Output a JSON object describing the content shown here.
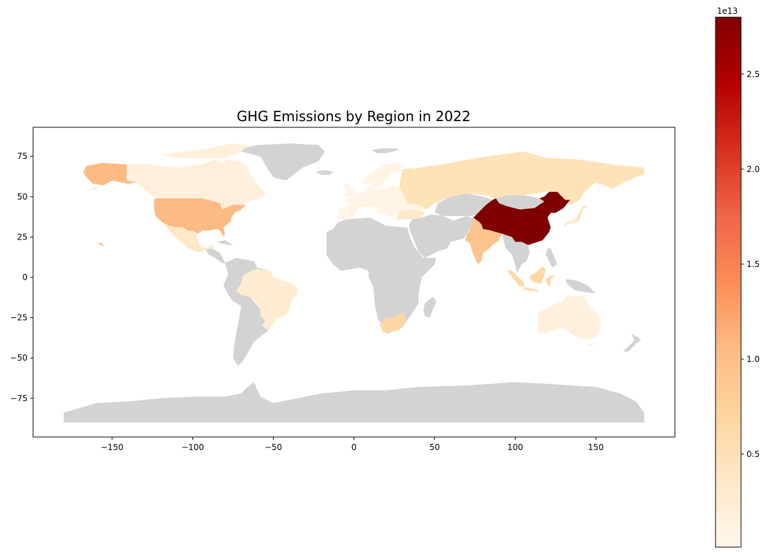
{
  "chart_data": {
    "type": "choropleth",
    "title": "GHG Emissions by Region in 2022",
    "xlabel": "",
    "ylabel": "",
    "xlim": [
      -199,
      199
    ],
    "ylim": [
      -99,
      93
    ],
    "x_ticks": [
      -150,
      -100,
      -50,
      0,
      50,
      100,
      150
    ],
    "x_tick_labels": [
      "−150",
      "−100",
      "−50",
      "0",
      "50",
      "100",
      "150"
    ],
    "y_ticks": [
      75,
      50,
      25,
      0,
      -25,
      -50,
      -75
    ],
    "y_tick_labels": [
      "75",
      "50",
      "25",
      "0",
      "−25",
      "−50",
      "−75"
    ],
    "colorbar": {
      "colormap": "OrRd",
      "range": [
        100000000000,
        28000000000000
      ],
      "ticks": [
        0.5,
        1.0,
        1.5,
        2.0,
        2.5
      ],
      "tick_labels": [
        "0.5",
        "1.0",
        "1.5",
        "2.0",
        "2.5"
      ],
      "multiplier_label": "1e13",
      "stops": [
        "#fff7ec",
        "#fee8c8",
        "#fdd49e",
        "#fdbb84",
        "#fc8d59",
        "#ef6548",
        "#d7301f",
        "#b30000",
        "#7f0000"
      ]
    },
    "no_data_color": "#d3d3d3",
    "regions": [
      {
        "name": "China",
        "value": 28000000000000
      },
      {
        "name": "United States",
        "value": 9800000000000
      },
      {
        "name": "India",
        "value": 8500000000000
      },
      {
        "name": "Alaska",
        "value": 9800000000000
      },
      {
        "name": "Russia",
        "value": 4500000000000
      },
      {
        "name": "Japan",
        "value": 4000000000000
      },
      {
        "name": "Brazil",
        "value": 2500000000000
      },
      {
        "name": "Indonesia",
        "value": 3500000000000
      },
      {
        "name": "Canada",
        "value": 2000000000000
      },
      {
        "name": "Australia",
        "value": 1800000000000
      },
      {
        "name": "South Africa",
        "value": 3000000000000
      },
      {
        "name": "Mexico",
        "value": 2000000000000
      },
      {
        "name": "Europe",
        "value": 1500000000000
      }
    ]
  }
}
